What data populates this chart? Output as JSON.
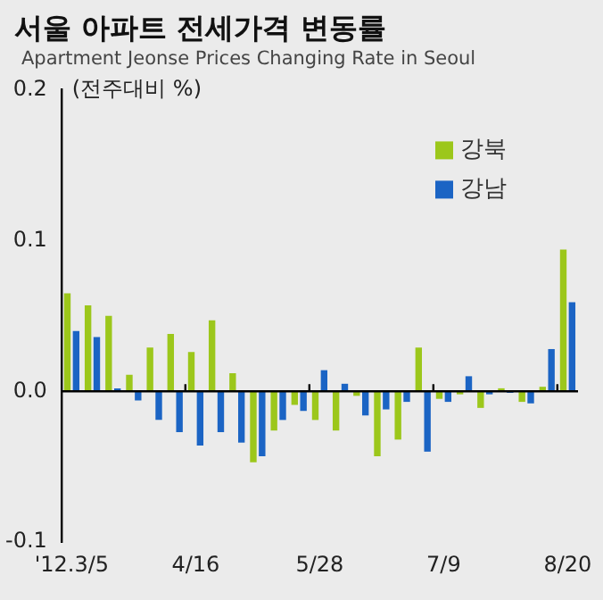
{
  "chart_data": {
    "type": "bar",
    "title": "서울 아파트 전세가격 변동률",
    "subtitle": "Apartment Jeonse Prices Changing Rate in Seoul",
    "ylabel": "(전주대비 %)",
    "categories": [
      "'12.3/5",
      null,
      null,
      null,
      null,
      null,
      "4/16",
      null,
      null,
      null,
      null,
      null,
      "5/28",
      null,
      null,
      null,
      null,
      null,
      "7/9",
      null,
      null,
      null,
      null,
      null,
      "8/20"
    ],
    "series": [
      {
        "name": "강북",
        "color": "#9cc71b",
        "values": [
          0.065,
          0.057,
          0.05,
          0.011,
          0.029,
          0.038,
          0.026,
          0.047,
          0.012,
          -0.047,
          -0.026,
          -0.009,
          -0.019,
          -0.026,
          -0.003,
          -0.043,
          -0.032,
          0.029,
          -0.005,
          -0.002,
          -0.011,
          0.002,
          -0.007,
          0.003,
          0.094
        ]
      },
      {
        "name": "강남",
        "color": "#1b64c4",
        "values": [
          0.04,
          0.036,
          0.002,
          -0.006,
          -0.019,
          -0.027,
          -0.036,
          -0.027,
          -0.034,
          -0.043,
          -0.019,
          -0.013,
          0.014,
          0.005,
          -0.016,
          -0.012,
          -0.007,
          -0.04,
          -0.007,
          0.01,
          -0.002,
          -0.001,
          -0.008,
          0.028,
          0.059
        ]
      }
    ],
    "ylim": [
      -0.1,
      0.2
    ],
    "yticks": [
      {
        "value": -0.1,
        "label": "-0.1"
      },
      {
        "value": 0,
        "label": "0.0"
      },
      {
        "value": 0.1,
        "label": "0.1"
      },
      {
        "value": 0.2,
        "label": "0.2"
      }
    ],
    "ref_lines": [
      {
        "axis": "y",
        "value": 0,
        "color": "#000000"
      }
    ],
    "legend": "top right",
    "grid": false
  }
}
